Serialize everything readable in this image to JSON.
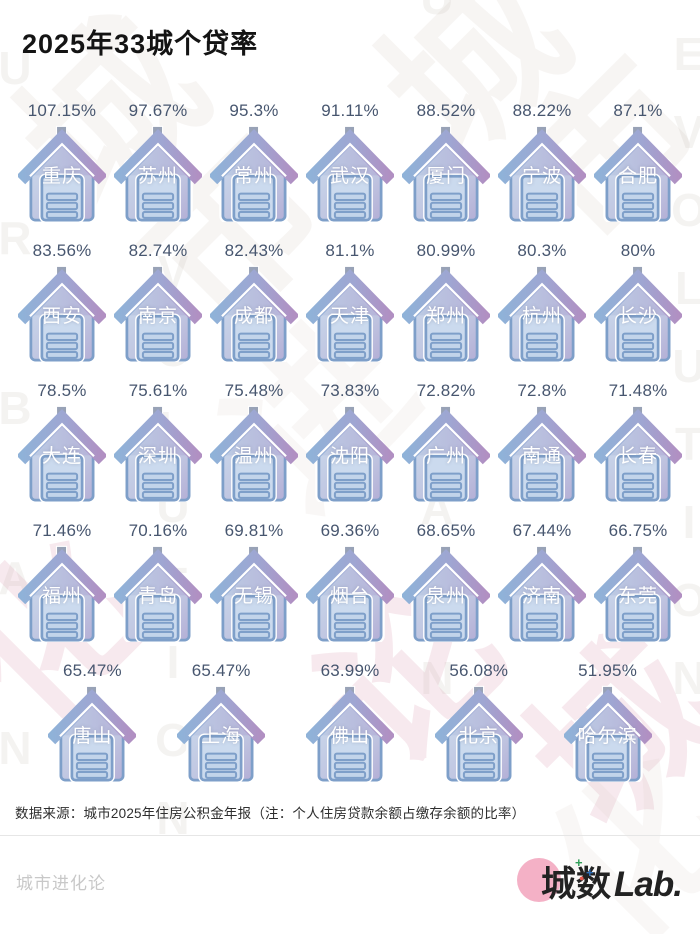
{
  "title": "2025年33城个贷率",
  "chart_data": {
    "type": "table",
    "title": "2025年33城个贷率",
    "unit": "%",
    "categories": [
      "重庆",
      "苏州",
      "常州",
      "武汉",
      "厦门",
      "宁波",
      "合肥",
      "西安",
      "南京",
      "成都",
      "天津",
      "郑州",
      "杭州",
      "长沙",
      "大连",
      "深圳",
      "温州",
      "沈阳",
      "广州",
      "南通",
      "长春",
      "福州",
      "青岛",
      "无锡",
      "烟台",
      "泉州",
      "济南",
      "东莞",
      "唐山",
      "上海",
      "佛山",
      "北京",
      "哈尔滨"
    ],
    "values": [
      107.15,
      97.67,
      95.3,
      91.11,
      88.52,
      88.22,
      87.1,
      83.56,
      82.74,
      82.43,
      81.1,
      80.99,
      80.3,
      80,
      78.5,
      75.61,
      75.48,
      73.83,
      72.82,
      72.8,
      71.48,
      71.46,
      70.16,
      69.81,
      69.36,
      68.65,
      67.44,
      66.75,
      65.47,
      65.47,
      63.99,
      56.08,
      51.95
    ],
    "rows_layout": [
      7,
      7,
      7,
      7,
      5
    ],
    "note": "数据来源：城市2025年住房公积金年报（注：个人住房贷款余额占缴存余额的比率）"
  },
  "source_note": "数据来源：城市2025年住房公积金年报（注：个人住房贷款余额占缴存余额的比率）",
  "brand": {
    "left": "城市进化论",
    "logo_cn": "城数",
    "logo_en": "Lab."
  },
  "watermark": {
    "vertical_left": "URBAN",
    "vertical_mid": "EVOLUTION",
    "vertical_mid2": "URBAN",
    "vertical_right": "EVOLUTION",
    "cn_chars": [
      "城",
      "市",
      "城",
      "市",
      "进",
      "化",
      "论",
      "城",
      "化"
    ]
  },
  "colors": {
    "value_text": "#47566F",
    "house_border": "#7E9FC9",
    "roof_blue": "#8FB2D8",
    "roof_purple": "#B18FC2",
    "body_light": "#C9D7EB",
    "body_lavender": "#B4AFD6",
    "logo_pink": "#F4B1C6",
    "brand_gray": "#C8C8C8"
  }
}
